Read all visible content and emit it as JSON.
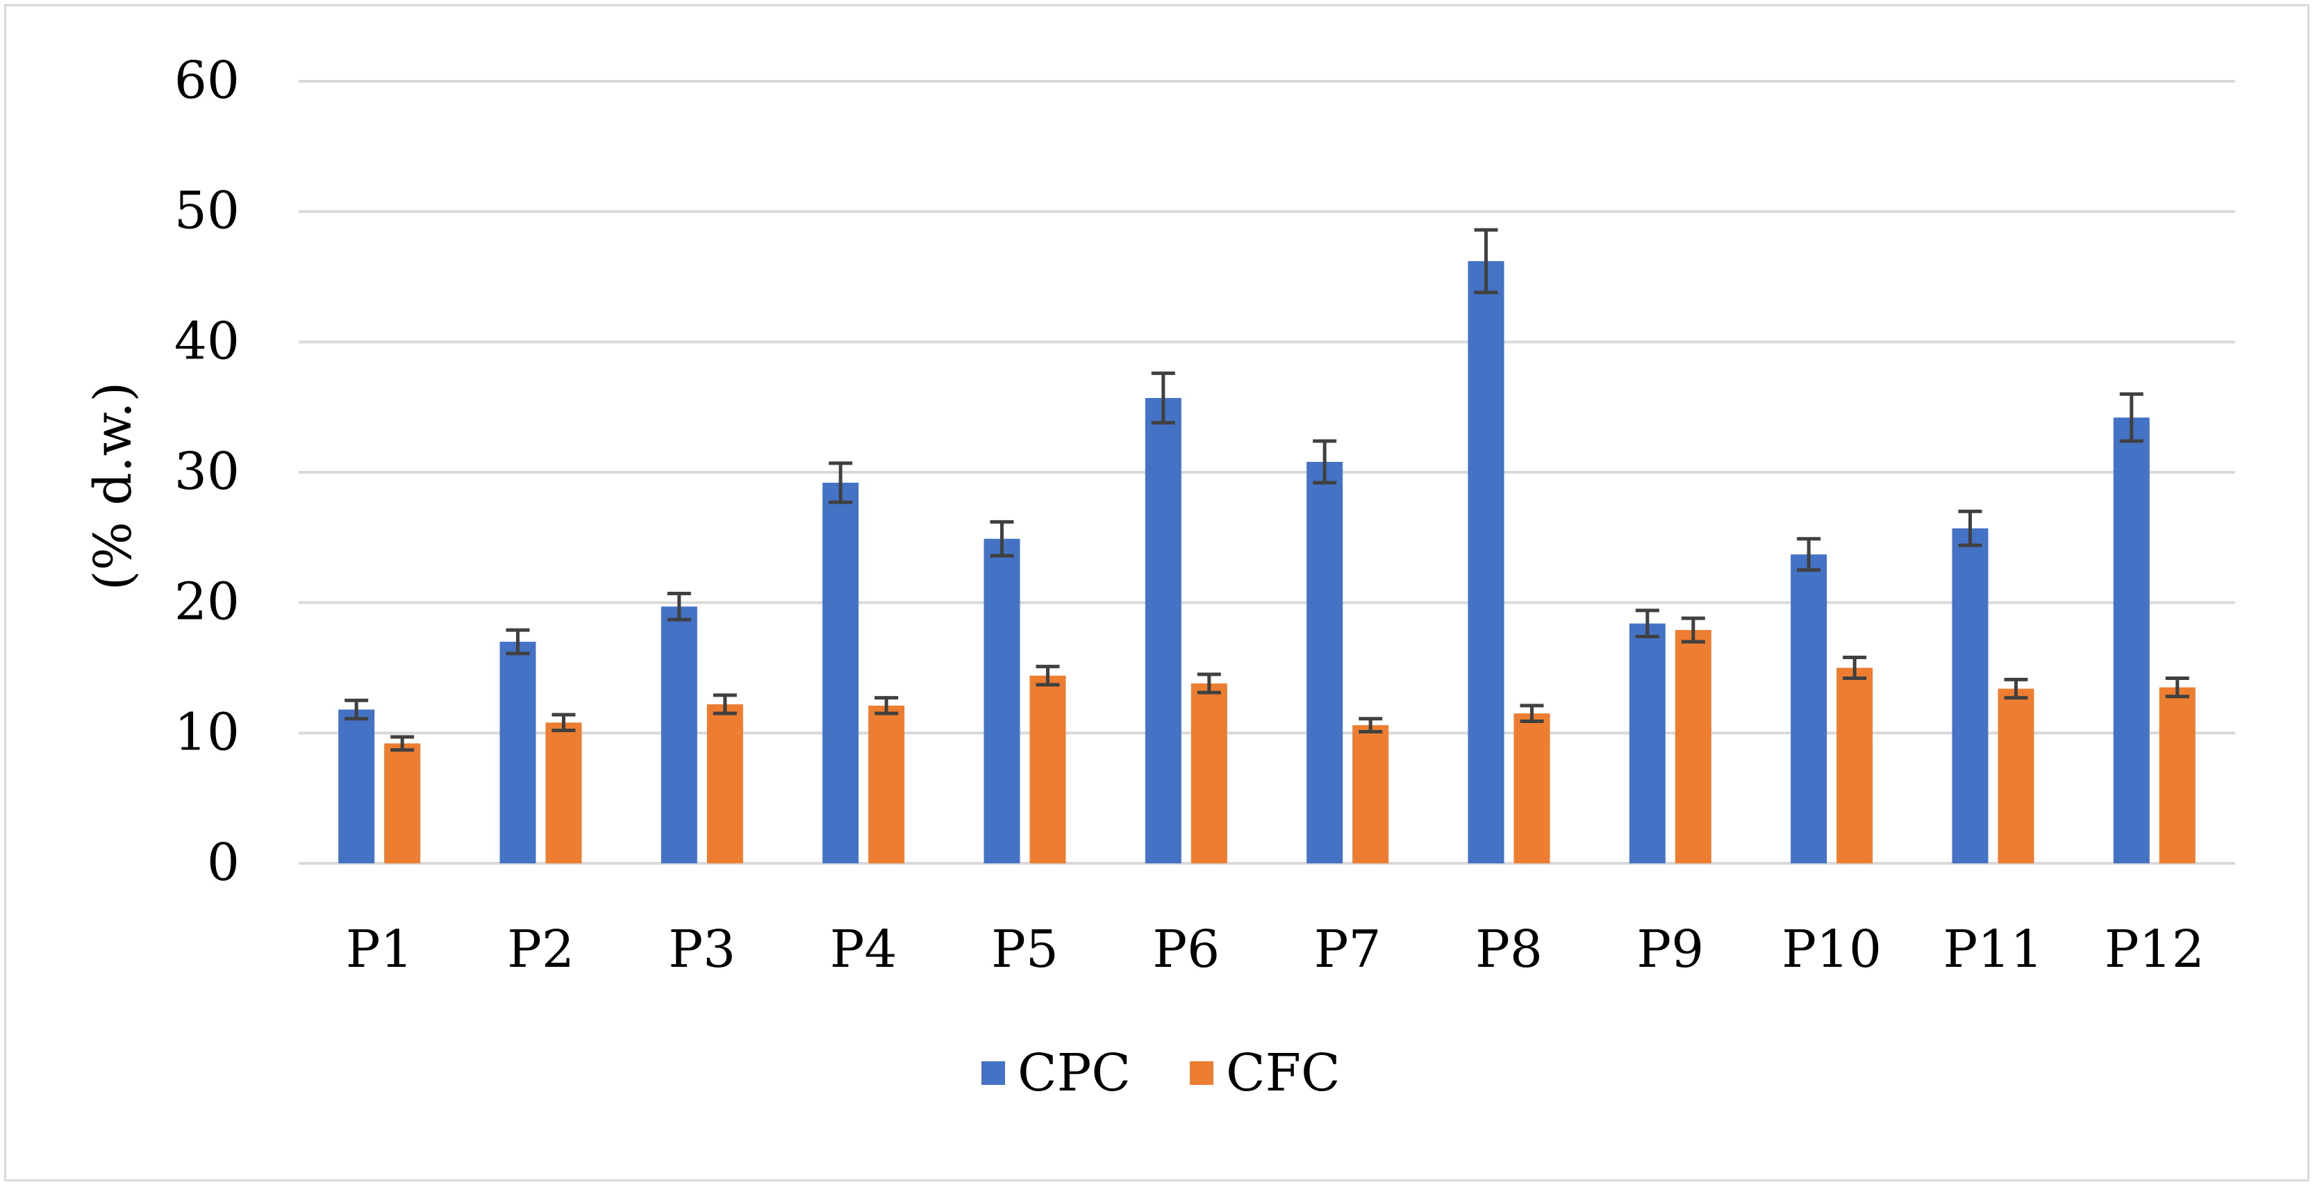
{
  "chart_data": {
    "type": "bar",
    "title": "",
    "xlabel": "",
    "ylabel": "(% d.w.)",
    "ylim": [
      0,
      60
    ],
    "yticks": [
      0,
      10,
      20,
      30,
      40,
      50,
      60
    ],
    "grid": true,
    "legend_position": "bottom",
    "categories": [
      "P1",
      "P2",
      "P3",
      "P4",
      "P5",
      "P6",
      "P7",
      "P8",
      "P9",
      "P10",
      "P11",
      "P12"
    ],
    "series": [
      {
        "name": "CPC",
        "color": "#4472C4",
        "values": [
          11.8,
          17.0,
          19.7,
          29.2,
          24.9,
          35.7,
          30.8,
          46.2,
          18.4,
          23.7,
          25.7,
          34.2
        ],
        "errors": [
          0.7,
          0.9,
          1.0,
          1.5,
          1.3,
          1.9,
          1.6,
          2.4,
          1.0,
          1.2,
          1.3,
          1.8
        ]
      },
      {
        "name": "CFC",
        "color": "#ED7D31",
        "values": [
          9.2,
          10.8,
          12.2,
          12.1,
          14.4,
          13.8,
          10.6,
          11.5,
          17.9,
          15.0,
          13.4,
          13.5
        ],
        "errors": [
          0.5,
          0.6,
          0.7,
          0.6,
          0.7,
          0.7,
          0.5,
          0.6,
          0.9,
          0.8,
          0.7,
          0.7
        ]
      }
    ],
    "error_bar_color": "#404040",
    "gridline_color": "#d9d9d9"
  }
}
